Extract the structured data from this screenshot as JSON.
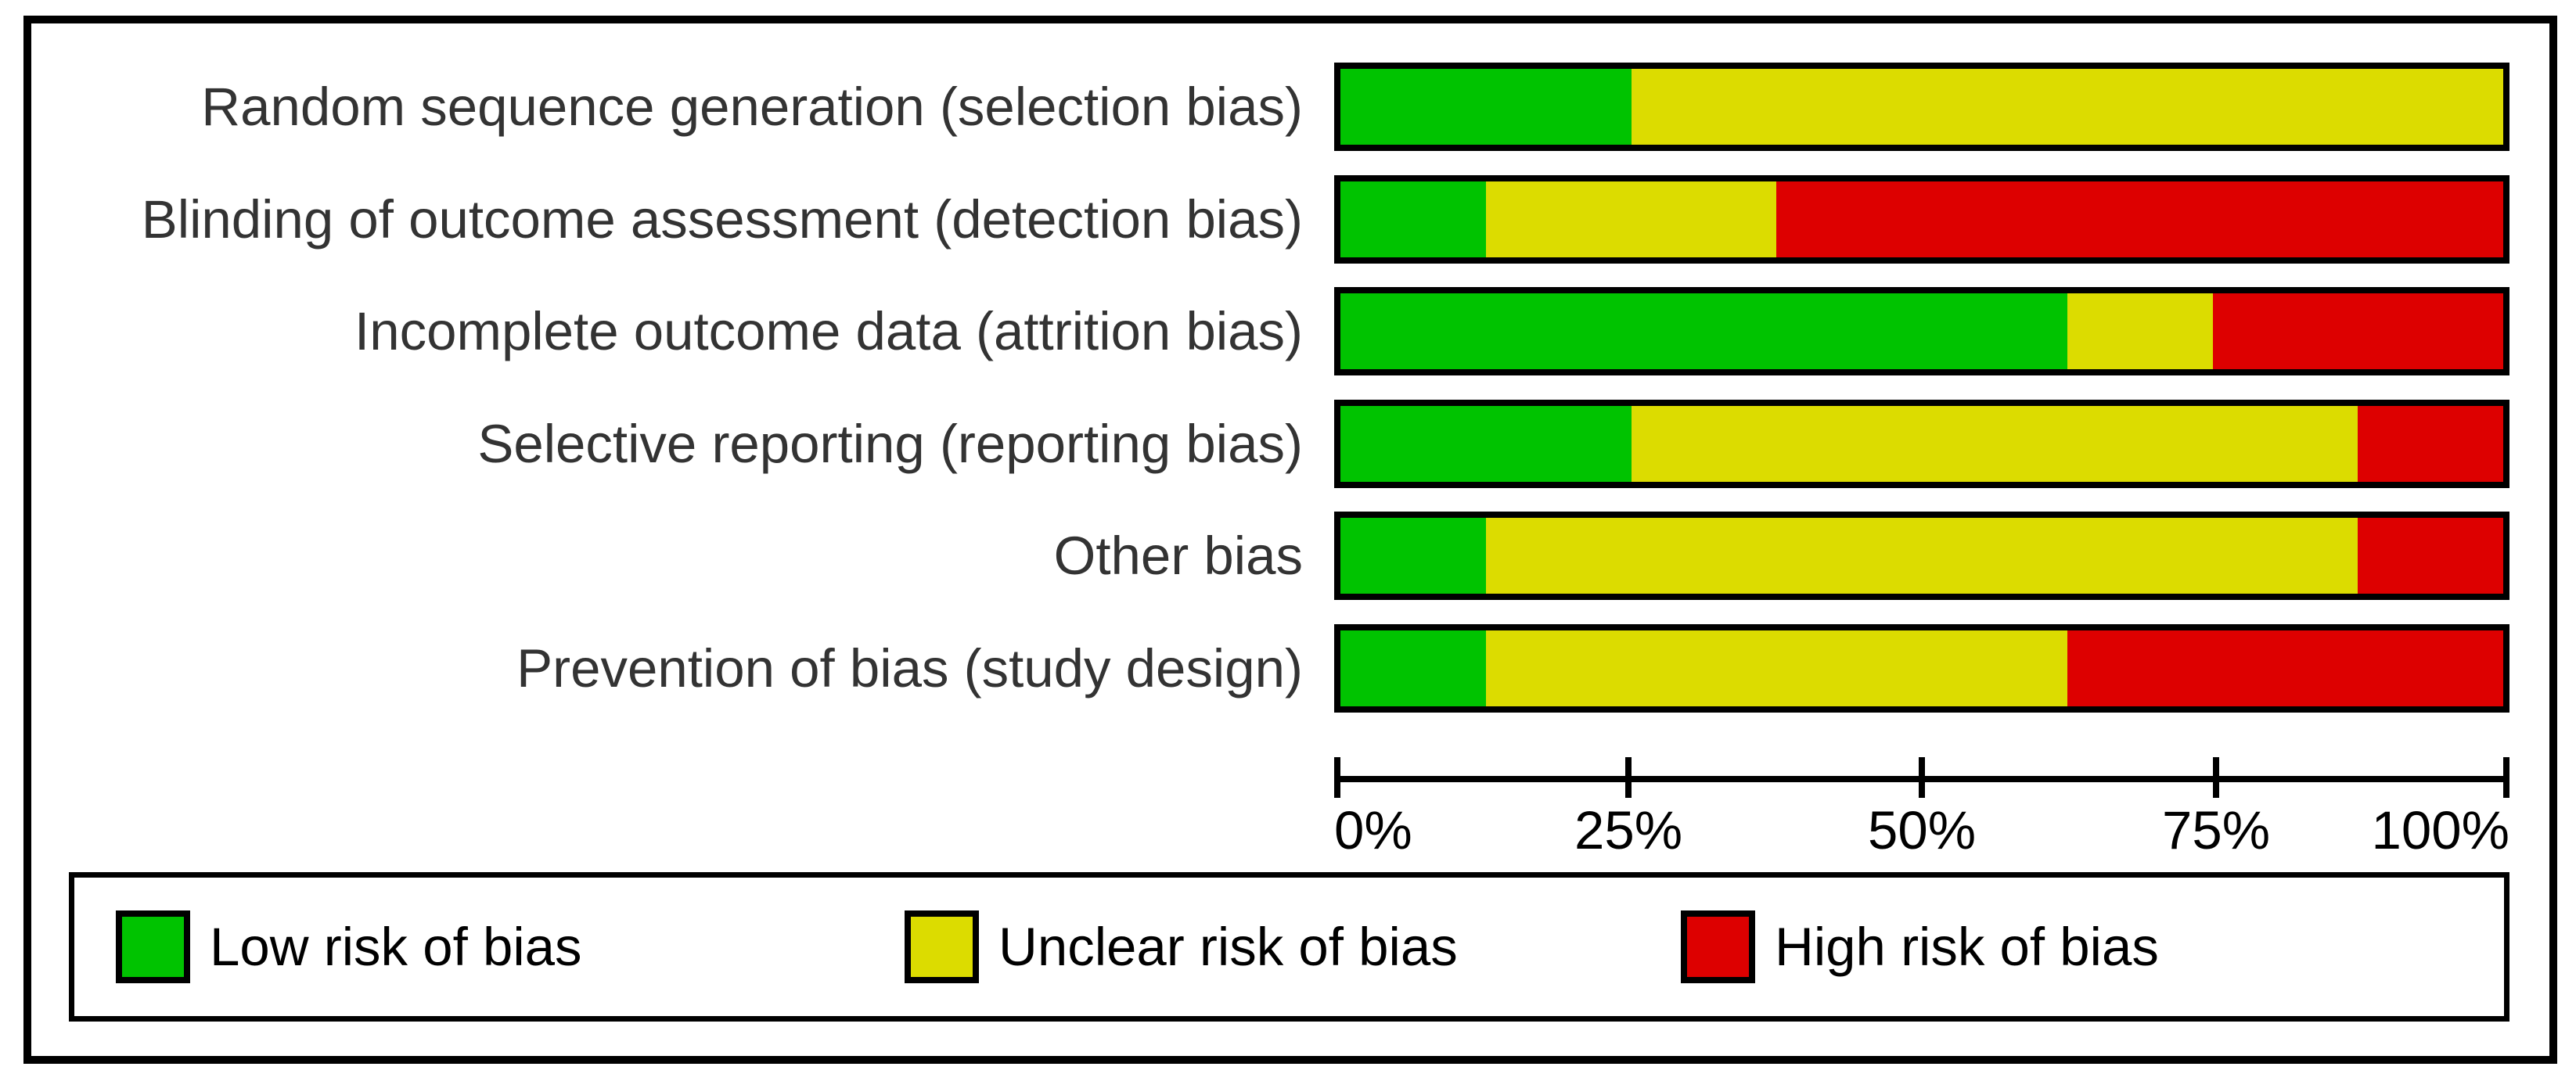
{
  "chart_data": {
    "type": "bar",
    "orientation": "horizontal",
    "stacked": true,
    "unit": "percent",
    "title": "",
    "categories": [
      "Random sequence generation (selection bias)",
      "Blinding of outcome assessment (detection bias)",
      "Incomplete outcome data (attrition bias)",
      "Selective reporting (reporting bias)",
      "Other bias",
      "Prevention of bias (study design)"
    ],
    "series": [
      {
        "name": "Low risk of bias",
        "color": "#00C300",
        "values": [
          25,
          12.5,
          62.5,
          25,
          12.5,
          12.5
        ]
      },
      {
        "name": "Unclear risk of bias",
        "color": "#DCDC00",
        "values": [
          75,
          25,
          12.5,
          62.5,
          75,
          50
        ]
      },
      {
        "name": "High risk of bias",
        "color": "#DD0000",
        "values": [
          0,
          62.5,
          25,
          12.5,
          12.5,
          37.5
        ]
      }
    ],
    "x_ticks": [
      "0%",
      "25%",
      "50%",
      "75%",
      "100%"
    ],
    "xlim": [
      0,
      100
    ],
    "grid": false,
    "legend_position": "bottom"
  },
  "legend": {
    "items": [
      {
        "label": "Low risk of bias",
        "color": "#00C300"
      },
      {
        "label": "Unclear risk of bias",
        "color": "#DCDC00"
      },
      {
        "label": "High risk of bias",
        "color": "#DD0000"
      }
    ]
  }
}
